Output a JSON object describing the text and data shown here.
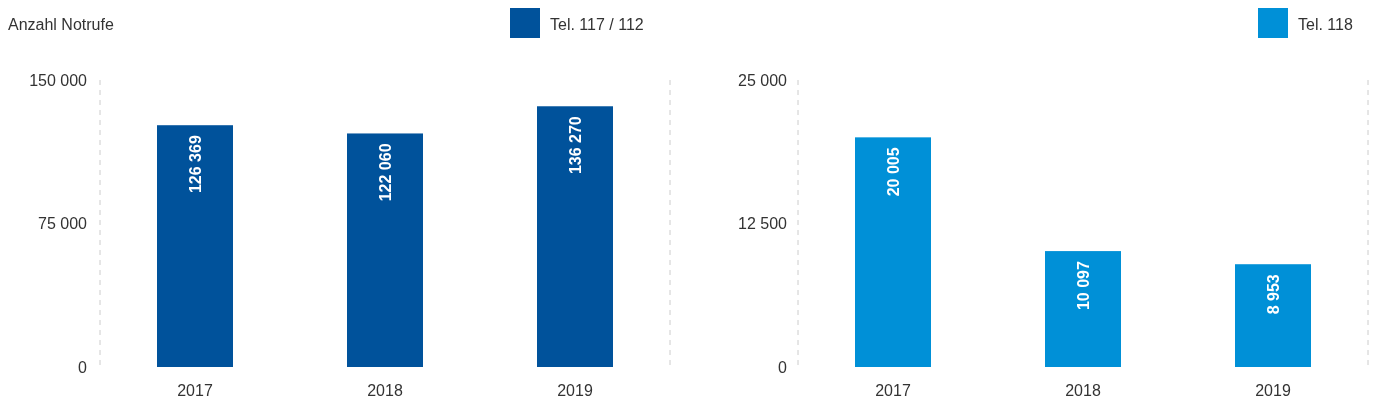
{
  "chart_data": [
    {
      "type": "bar",
      "ylabel": "Anzahl Notrufe",
      "categories": [
        "2017",
        "2018",
        "2019"
      ],
      "legend": "top right",
      "series": [
        {
          "name": "Tel. 117 / 112",
          "color": "#00529b",
          "values": [
            126369,
            122060,
            136270
          ],
          "value_labels": [
            "126 369",
            "122 060",
            "136 270"
          ]
        }
      ],
      "ylim": [
        0,
        150000
      ],
      "yticks": [
        {
          "value": 0,
          "label": "0"
        },
        {
          "value": 75000,
          "label": "75 000"
        },
        {
          "value": 150000,
          "label": "150 000"
        }
      ],
      "grid": false
    },
    {
      "type": "bar",
      "categories": [
        "2017",
        "2018",
        "2019"
      ],
      "legend": "top right",
      "series": [
        {
          "name": "Tel. 118",
          "color": "#0090d7",
          "values": [
            20005,
            10097,
            8953
          ],
          "value_labels": [
            "20 005",
            "10 097",
            "8 953"
          ]
        }
      ],
      "ylim": [
        0,
        25000
      ],
      "yticks": [
        {
          "value": 0,
          "label": "0"
        },
        {
          "value": 12500,
          "label": "12 500"
        },
        {
          "value": 25000,
          "label": "25 000"
        }
      ],
      "grid": false
    }
  ]
}
